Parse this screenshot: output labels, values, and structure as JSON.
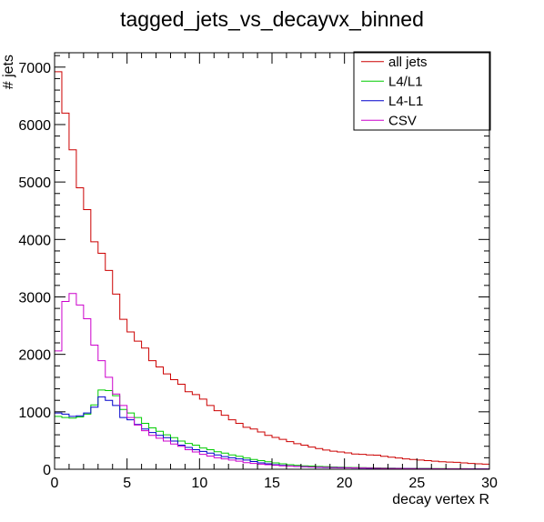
{
  "chart_data": {
    "type": "line",
    "drawstyle": "steps",
    "title": "tagged_jets_vs_decayvx_binned",
    "xlabel": "decay vertex R",
    "ylabel": "# jets",
    "xlim": [
      0,
      30
    ],
    "ylim": [
      0,
      7250
    ],
    "xticks": [
      0,
      5,
      10,
      15,
      20,
      25,
      30
    ],
    "yticks": [
      0,
      1000,
      2000,
      3000,
      4000,
      5000,
      6000,
      7000
    ],
    "xtick_labels": [
      "0",
      "5",
      "10",
      "15",
      "20",
      "25",
      "30"
    ],
    "ytick_labels": [
      "0",
      "1000",
      "2000",
      "3000",
      "4000",
      "5000",
      "6000",
      "7000"
    ],
    "grid": false,
    "legend_position": "top-right",
    "bin_width": 0.5,
    "series": [
      {
        "name": "all jets",
        "color": "#cc0000",
        "values": [
          6920,
          6200,
          5560,
          4900,
          4520,
          3960,
          3760,
          3460,
          3050,
          2610,
          2390,
          2230,
          2110,
          1890,
          1780,
          1660,
          1560,
          1480,
          1350,
          1300,
          1220,
          1110,
          1020,
          940,
          860,
          800,
          730,
          700,
          650,
          590,
          555,
          520,
          480,
          445,
          420,
          385,
          360,
          335,
          315,
          300,
          285,
          265,
          260,
          250,
          245,
          225,
          210,
          195,
          180,
          170,
          160,
          150,
          140,
          130,
          125,
          120,
          110,
          100,
          95,
          90
        ]
      },
      {
        "name": "L4/L1",
        "color": "#00cc00",
        "values": [
          920,
          900,
          890,
          910,
          960,
          1120,
          1380,
          1370,
          1280,
          1040,
          980,
          900,
          800,
          720,
          660,
          600,
          550,
          490,
          450,
          420,
          370,
          340,
          305,
          280,
          250,
          225,
          195,
          170,
          150,
          130,
          110,
          95,
          80,
          70,
          60,
          55,
          50,
          45,
          40,
          35,
          32,
          30,
          28,
          26,
          24,
          22,
          20,
          18,
          16,
          15,
          14,
          13,
          12,
          11,
          10,
          10,
          9,
          8,
          8,
          7
        ]
      },
      {
        "name": "L4-L1",
        "color": "#0000cc",
        "values": [
          980,
          960,
          920,
          930,
          980,
          1080,
          1260,
          1200,
          1110,
          900,
          860,
          780,
          700,
          640,
          590,
          550,
          490,
          420,
          380,
          340,
          310,
          280,
          250,
          220,
          200,
          180,
          160,
          135,
          110,
          95,
          80,
          68,
          58,
          50,
          44,
          38,
          33,
          30,
          27,
          25,
          23,
          21,
          19,
          17,
          15,
          14,
          13,
          12,
          11,
          10,
          9,
          9,
          8,
          8,
          7,
          7,
          6,
          6,
          5,
          5
        ]
      },
      {
        "name": "CSV",
        "color": "#cc00cc",
        "values": [
          2060,
          2920,
          3060,
          2860,
          2620,
          2160,
          1890,
          1600,
          1310,
          1110,
          900,
          770,
          670,
          590,
          540,
          490,
          440,
          400,
          340,
          300,
          260,
          230,
          200,
          180,
          160,
          140,
          115,
          100,
          90,
          80,
          70,
          60,
          55,
          50,
          45,
          40,
          36,
          33,
          30,
          27,
          25,
          23,
          21,
          19,
          17,
          15,
          14,
          13,
          12,
          11,
          10,
          9,
          9,
          8,
          8,
          7,
          7,
          6,
          6,
          5
        ]
      }
    ]
  }
}
